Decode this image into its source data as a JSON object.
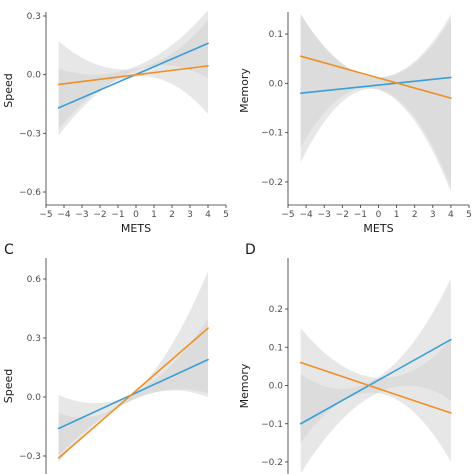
{
  "colors": {
    "ribbon": "#d3d3d3",
    "blue": "#3a9fd6",
    "orange": "#ef8f25",
    "axis": "#333333"
  },
  "chart_data": [
    {
      "type": "line",
      "panel_label": "",
      "xlabel": "METS",
      "ylabel": "Speed",
      "xlim": [
        -5,
        5
      ],
      "ylim": [
        -0.65,
        0.35
      ],
      "xticks": [
        -5,
        -4,
        -3,
        -2,
        -1,
        0,
        1,
        2,
        3,
        4,
        5
      ],
      "xticklabels": [
        "−5",
        "−4",
        "−3",
        "−2",
        "−1",
        "0",
        "1",
        "2",
        "3",
        "4",
        "5"
      ],
      "yticks": [
        0.3,
        0,
        -0.3,
        -0.6
      ],
      "yticklabels": [
        "0.3",
        "0.0",
        "−0.3",
        "−0.6"
      ],
      "series": [
        {
          "color": "blue",
          "x": [
            -4.3,
            4.0
          ],
          "y": [
            -0.17,
            0.16
          ],
          "band_lower": [
            -0.31,
            0.02,
            -0.02
          ],
          "band_upper": [
            0.03,
            0.04,
            0.33
          ]
        },
        {
          "color": "orange",
          "x": [
            -4.3,
            4.0
          ],
          "y": [
            -0.05,
            0.045
          ],
          "band_lower": [
            -0.28,
            -0.01,
            -0.2
          ],
          "band_upper": [
            0.17,
            0.03,
            0.28
          ]
        }
      ]
    },
    {
      "type": "line",
      "panel_label": "",
      "xlabel": "METS",
      "ylabel": "Memory",
      "xlim": [
        -5,
        5
      ],
      "ylim": [
        -0.22,
        0.14
      ],
      "xticks": [
        -5,
        -4,
        -3,
        -2,
        -1,
        0,
        1,
        2,
        3,
        4,
        5
      ],
      "xticklabels": [
        "−5",
        "−4",
        "−3",
        "−2",
        "−1",
        "0",
        "1",
        "2",
        "3",
        "4",
        "5"
      ],
      "yticks": [
        0.1,
        0,
        -0.1,
        -0.2
      ],
      "yticklabels": [
        "0.1",
        "0.0",
        "−0.1",
        "−0.2"
      ],
      "series": [
        {
          "color": "blue",
          "x": [
            -4.3,
            4.0
          ],
          "y": [
            -0.02,
            0.012
          ],
          "band_lower": [
            -0.16,
            -0.012,
            -0.21
          ],
          "band_upper": [
            0.14,
            0.012,
            0.13
          ]
        },
        {
          "color": "orange",
          "x": [
            -4.3,
            4.0
          ],
          "y": [
            0.055,
            -0.03
          ],
          "band_lower": [
            -0.13,
            -0.012,
            -0.22
          ],
          "band_upper": [
            0.14,
            0.012,
            0.14
          ]
        }
      ]
    },
    {
      "type": "line",
      "panel_label": "C",
      "xlabel": "",
      "ylabel": "Speed",
      "xlim": [
        -5,
        5
      ],
      "ylim": [
        -0.32,
        0.64
      ],
      "xticks": [],
      "xticklabels": [],
      "yticks": [
        0.6,
        0.3,
        0,
        -0.3
      ],
      "yticklabels": [
        "0.6",
        "0.3",
        "0.0",
        "−0.3"
      ],
      "series": [
        {
          "color": "blue",
          "x": [
            -4.3,
            4.0
          ],
          "y": [
            -0.16,
            0.19
          ],
          "band_lower": [
            -0.3,
            -0.01,
            0.02
          ],
          "band_upper": [
            0.01,
            0.02,
            0.4
          ]
        },
        {
          "color": "orange",
          "x": [
            -4.3,
            4.0
          ],
          "y": [
            -0.31,
            0.35
          ],
          "band_lower": [
            -0.33,
            -0.01,
            0.0
          ],
          "band_upper": [
            -0.08,
            0.02,
            0.64
          ]
        }
      ]
    },
    {
      "type": "line",
      "panel_label": "D",
      "xlabel": "",
      "ylabel": "Memory",
      "xlim": [
        -5,
        5
      ],
      "ylim": [
        -0.21,
        0.24
      ],
      "xticks": [],
      "xticklabels": [],
      "yticks": [
        0.2,
        0.1,
        0,
        -0.1,
        -0.2
      ],
      "yticklabels": [
        "0.2",
        "0.1",
        "0.0",
        "−0.1",
        "−0.2"
      ],
      "series": [
        {
          "color": "blue",
          "x": [
            -4.3,
            4.0
          ],
          "y": [
            -0.1,
            0.12
          ],
          "band_lower": [
            -0.23,
            -0.02,
            -0.04
          ],
          "band_upper": [
            0.03,
            0.02,
            0.28
          ]
        },
        {
          "color": "orange",
          "x": [
            -4.3,
            4.0
          ],
          "y": [
            0.06,
            -0.072
          ],
          "band_lower": [
            -0.15,
            -0.02,
            -0.2
          ],
          "band_upper": [
            0.15,
            0.02,
            0.12
          ]
        }
      ]
    }
  ]
}
